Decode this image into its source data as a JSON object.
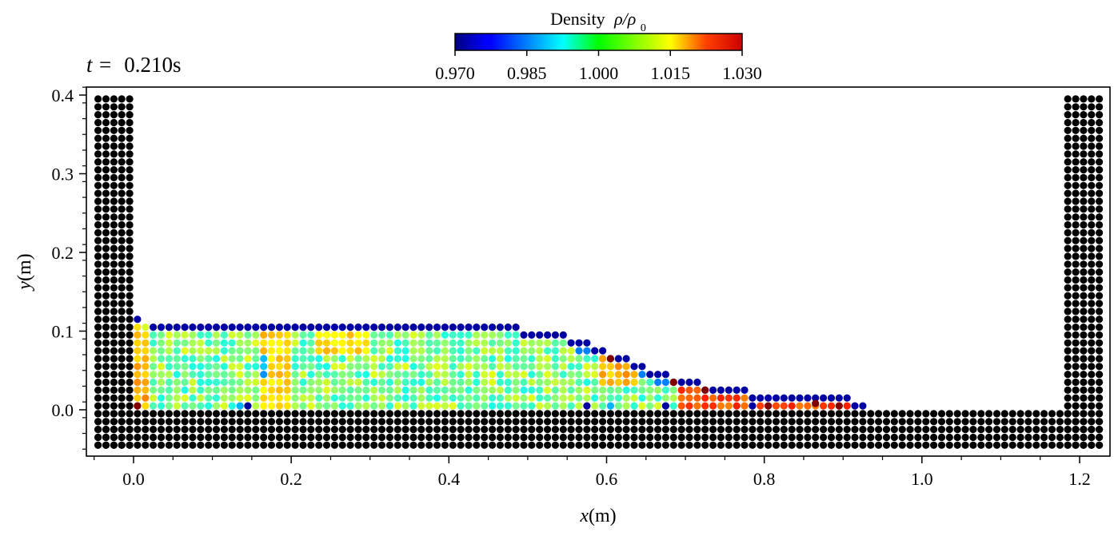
{
  "chart_data": {
    "type": "scatter",
    "title": "",
    "time_label": {
      "prefix": "t =",
      "value": "0.210s"
    },
    "xlabel": {
      "var": "x",
      "unit": "(m)"
    },
    "ylabel": {
      "var": "y",
      "unit": "(m)"
    },
    "xlim": [
      -0.06,
      1.24
    ],
    "ylim": [
      -0.06,
      0.41
    ],
    "xticks": [
      0.0,
      0.2,
      0.4,
      0.6,
      0.8,
      1.0,
      1.2
    ],
    "xtick_labels": [
      "0.0",
      "0.2",
      "0.4",
      "0.6",
      "0.8",
      "1.0",
      "1.2"
    ],
    "yticks": [
      0.0,
      0.1,
      0.2,
      0.3,
      0.4
    ],
    "ytick_labels": [
      "0.0",
      "0.1",
      "0.2",
      "0.3",
      "0.4"
    ],
    "grid": false,
    "particle_spacing": 0.01,
    "boundary": {
      "color": "#000000",
      "left_wall": {
        "x": [
          -0.045,
          -0.005
        ],
        "y": [
          -0.045,
          0.395
        ]
      },
      "right_wall": {
        "x": [
          1.185,
          1.225
        ],
        "y": [
          -0.045,
          0.395
        ]
      },
      "floor": {
        "x": [
          -0.045,
          1.225
        ],
        "y": [
          -0.045,
          -0.005
        ]
      }
    },
    "fluid": {
      "x_start": 0.005,
      "surface_profile": [
        [
          0.005,
          0.115
        ],
        [
          0.3,
          0.113
        ],
        [
          0.4,
          0.111
        ],
        [
          0.45,
          0.109
        ],
        [
          0.5,
          0.104
        ],
        [
          0.55,
          0.095
        ],
        [
          0.58,
          0.085
        ],
        [
          0.62,
          0.068
        ],
        [
          0.66,
          0.052
        ],
        [
          0.7,
          0.04
        ],
        [
          0.75,
          0.029
        ],
        [
          0.8,
          0.022
        ],
        [
          0.85,
          0.018
        ],
        [
          0.9,
          0.016
        ],
        [
          0.935,
          0.013
        ]
      ],
      "density_overrides": [
        {
          "x": [
            0.005,
            0.015
          ],
          "y": [
            0.0,
            0.11
          ],
          "value": 1.012
        },
        {
          "x": [
            0.16,
            0.2
          ],
          "y": [
            0.0,
            0.11
          ],
          "value": 1.01
        },
        {
          "x": [
            0.165,
            0.175
          ],
          "y": [
            0.04,
            0.07
          ],
          "value": 0.988
        },
        {
          "x": [
            0.23,
            0.3
          ],
          "y": [
            0.07,
            0.1
          ],
          "value": 1.01
        },
        {
          "x": [
            0.59,
            0.64
          ],
          "y": [
            0.03,
            0.07
          ],
          "value": 1.012
        },
        {
          "x": [
            0.69,
            0.93
          ],
          "y": [
            0.0,
            0.03
          ],
          "value": 1.018
        }
      ],
      "highlight_particles": [
        {
          "x": 0.005,
          "y": 0.005,
          "value": 1.03
        },
        {
          "x": 0.605,
          "y": 0.065,
          "value": 1.03
        },
        {
          "x": 0.685,
          "y": 0.035,
          "value": 1.03
        },
        {
          "x": 0.725,
          "y": 0.025,
          "value": 1.03
        },
        {
          "x": 0.805,
          "y": 0.005,
          "value": 1.03
        },
        {
          "x": 0.865,
          "y": 0.008,
          "value": 1.03
        },
        {
          "x": 0.895,
          "y": 0.005,
          "value": 1.03
        },
        {
          "x": 0.575,
          "y": 0.005,
          "value": 0.972
        },
        {
          "x": 0.675,
          "y": 0.005,
          "value": 0.972
        },
        {
          "x": 0.785,
          "y": 0.005,
          "value": 0.972
        },
        {
          "x": 0.605,
          "y": 0.005,
          "value": 0.988
        },
        {
          "x": 0.135,
          "y": 0.005,
          "value": 0.988
        },
        {
          "x": 0.145,
          "y": 0.005,
          "value": 0.972
        }
      ]
    },
    "colorbar": {
      "title": {
        "text": "Density",
        "symbol": "ρ/ρ",
        "subscript": "0"
      },
      "colormap": "jet",
      "vmin": 0.97,
      "vmax": 1.03,
      "ticks": [
        0.97,
        0.985,
        1.0,
        1.015,
        1.03
      ],
      "tick_labels": [
        "0.970",
        "0.985",
        "1.000",
        "1.015",
        "1.030"
      ]
    }
  }
}
